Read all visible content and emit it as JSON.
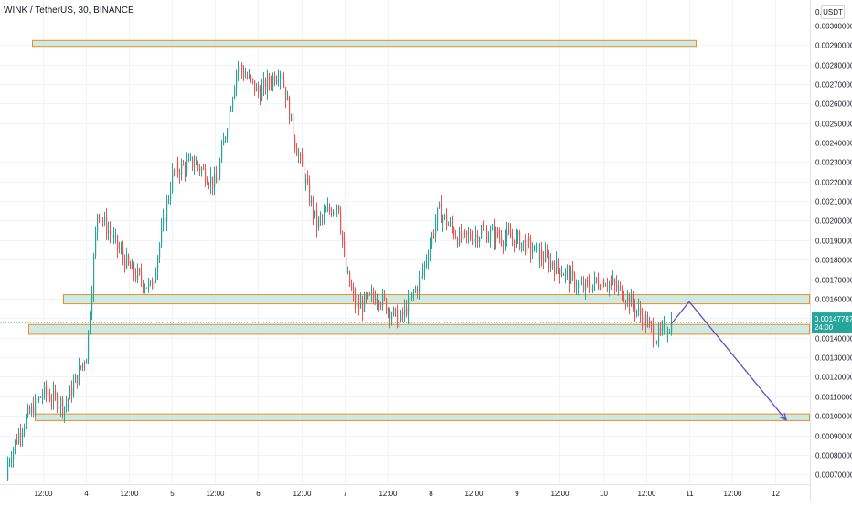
{
  "header": {
    "symbol": "WINK / TetherUS, 30, BINANCE",
    "currency_badge": "USDT"
  },
  "chart_data": {
    "type": "candlestick",
    "title": "WINK / TetherUS, 30, BINANCE",
    "xlabel": "",
    "ylabel": "",
    "ylim": [
      0.00065,
      0.00313
    ],
    "y_ticks": [
      "0.00070000",
      "0.00080000",
      "0.00090000",
      "0.00100000",
      "0.00110000",
      "0.00120000",
      "0.00130000",
      "0.00140000",
      "0.00150000",
      "0.00160000",
      "0.00170000",
      "0.00180000",
      "0.00190000",
      "0.00200000",
      "0.00210000",
      "0.00220000",
      "0.00230000",
      "0.00240000",
      "0.00250000",
      "0.00260000",
      "0.00270000",
      "0.00280000",
      "0.00290000",
      "0.00300000"
    ],
    "x_ticks": [
      "12:00",
      "4",
      "12:00",
      "5",
      "12:00",
      "6",
      "12:00",
      "7",
      "12:00",
      "8",
      "12:00",
      "9",
      "12:00",
      "10",
      "12:00",
      "11",
      "12:00",
      "12"
    ],
    "current_price": {
      "value": "0.00147787",
      "countdown": "24:00",
      "color": "#26a69a"
    },
    "zone_fill": "#bfe6e0",
    "zone_border": "#f08c1e",
    "up_color": "#26a69a",
    "down_color": "#ef5350",
    "projection_color": "#5b53c4",
    "zones": [
      {
        "name": "top-resistance-zone",
        "y_low": 0.002895,
        "y_high": 0.002925
      },
      {
        "name": "upper-support-zone",
        "y_low": 0.001576,
        "y_high": 0.001623
      },
      {
        "name": "middle-support-zone",
        "y_low": 0.00142,
        "y_high": 0.00147
      },
      {
        "name": "bottom-target-zone",
        "y_low": 0.000978,
        "y_high": 0.001012
      }
    ],
    "projection": [
      {
        "x_date": "Day 10, 19:00",
        "y": 0.00147
      },
      {
        "x_date": "Day 11, 00:00",
        "y": 0.001585
      },
      {
        "x_date": "Day 12, 03:00",
        "y": 0.000978
      }
    ],
    "price_path": [
      [
        "Day 3, 00:00",
        0.00067
      ],
      [
        "Day 3, 06:00",
        0.00095
      ],
      [
        "Day 3, 12:00",
        0.00112
      ],
      [
        "Day 3, 18:00",
        0.00105
      ],
      [
        "Day 4, 00:00",
        0.00132
      ],
      [
        "Day 4, 03:00",
        0.00205
      ],
      [
        "Day 4, 06:00",
        0.00195
      ],
      [
        "Day 4, 12:00",
        0.00175
      ],
      [
        "Day 4, 18:00",
        0.00165
      ],
      [
        "Day 5, 00:00",
        0.00225
      ],
      [
        "Day 5, 06:00",
        0.0023
      ],
      [
        "Day 5, 12:00",
        0.00218
      ],
      [
        "Day 5, 18:00",
        0.0028
      ],
      [
        "Day 6, 00:00",
        0.00265
      ],
      [
        "Day 6, 06:00",
        0.00278
      ],
      [
        "Day 6, 10:00",
        0.0024
      ],
      [
        "Day 6, 16:00",
        0.00198
      ],
      [
        "Day 6, 22:00",
        0.0021
      ],
      [
        "Day 7, 00:00",
        0.00175
      ],
      [
        "Day 7, 03:00",
        0.00155
      ],
      [
        "Day 7, 09:00",
        0.00162
      ],
      [
        "Day 7, 15:00",
        0.00148
      ],
      [
        "Day 7, 21:00",
        0.0017
      ],
      [
        "Day 8, 02:00",
        0.00205
      ],
      [
        "Day 8, 08:00",
        0.0019
      ],
      [
        "Day 8, 14:00",
        0.00194
      ],
      [
        "Day 9, 00:00",
        0.0019
      ],
      [
        "Day 9, 12:00",
        0.00175
      ],
      [
        "Day 9, 18:00",
        0.00165
      ],
      [
        "Day 10, 00:00",
        0.0017
      ],
      [
        "Day 10, 06:00",
        0.00162
      ],
      [
        "Day 10, 12:00",
        0.00147
      ],
      [
        "Day 10, 15:00",
        0.0014
      ],
      [
        "Day 10, 19:00",
        0.00148
      ]
    ]
  }
}
